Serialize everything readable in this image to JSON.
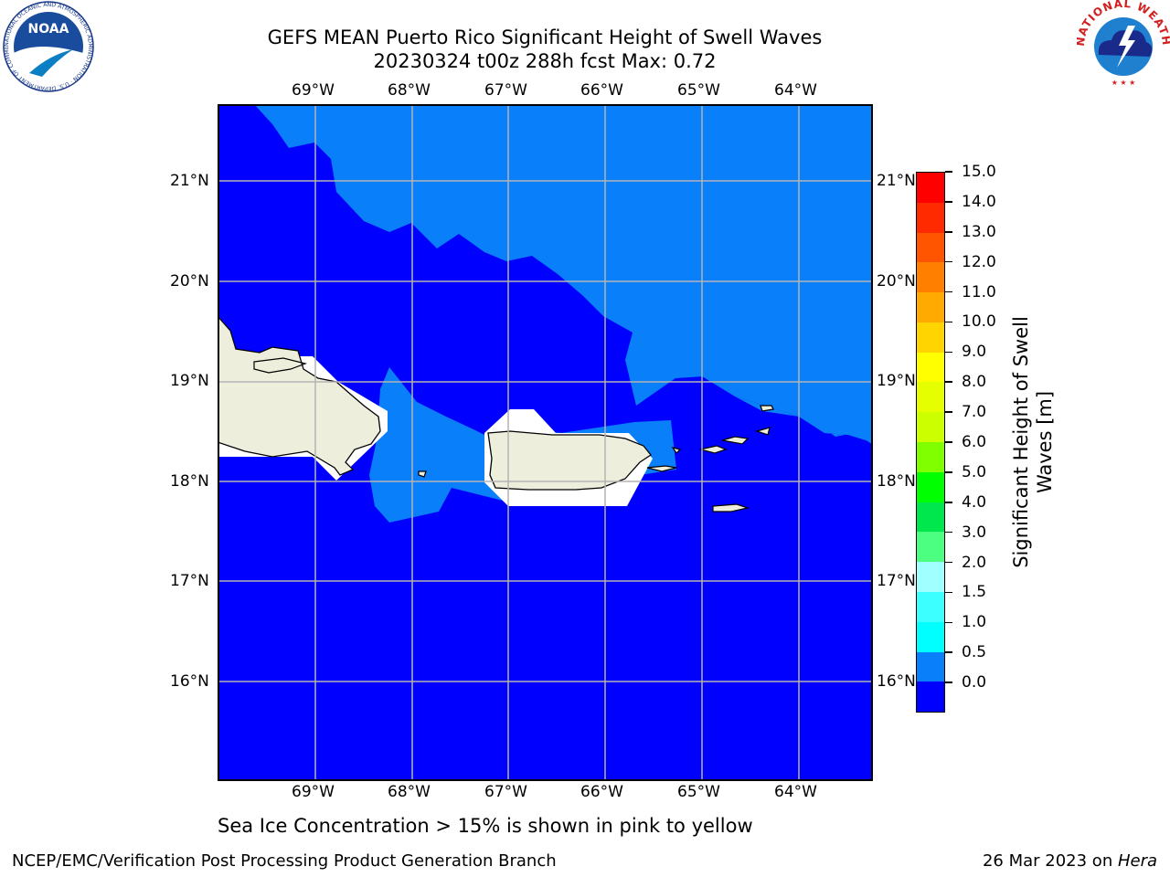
{
  "title": {
    "line1": "GEFS MEAN Puerto Rico Significant Height of Swell Waves",
    "line2": "20230324 t00z 288h fcst   Max: 0.72"
  },
  "map": {
    "lon_labels": [
      "69°W",
      "68°W",
      "67°W",
      "66°W",
      "65°W",
      "64°W"
    ],
    "lat_labels": [
      "21°N",
      "20°N",
      "19°N",
      "18°N",
      "17°N",
      "16°N"
    ],
    "colors": {
      "water_low": "#0000ff",
      "water_mid": "#0a7ffa",
      "land": "#eeeedc",
      "coast": "#000000",
      "grid": "#b4b4b4"
    }
  },
  "colorbar": {
    "label_line1": "Significant Height of Swell",
    "label_line2": "Waves [m]",
    "ticks": [
      "15.0",
      "14.0",
      "13.0",
      "12.0",
      "11.0",
      "10.0",
      "9.0",
      "8.0",
      "7.0",
      "6.0",
      "5.0",
      "4.0",
      "3.0",
      "2.0",
      "1.5",
      "1.0",
      "0.5",
      "0.0"
    ],
    "band_colors": [
      "#ff0000",
      "#ff2a00",
      "#ff5500",
      "#ff8000",
      "#ffaa00",
      "#ffd400",
      "#ffff00",
      "#e6ff00",
      "#ccff00",
      "#80ff00",
      "#00ff00",
      "#00e64d",
      "#4dff80",
      "#a0ffff",
      "#3cffff",
      "#00ffff",
      "#0a7ffa",
      "#0000ff"
    ]
  },
  "subtitle": "Sea Ice Concentration > 15% is shown in pink to yellow",
  "footer": {
    "left": "NCEP/EMC/Verification Post Processing Product Generation Branch",
    "date": "26 Mar 2023 on ",
    "machine": "Hera"
  },
  "logos": {
    "noaa_text": "NOAA",
    "noaa_ring": "NATIONAL OCEANIC AND ATMOSPHERIC ADMINISTRATION · U.S. DEPARTMENT OF COMMERCE ·",
    "nws_ring": "NATIONAL WEATHER SERVICE"
  }
}
